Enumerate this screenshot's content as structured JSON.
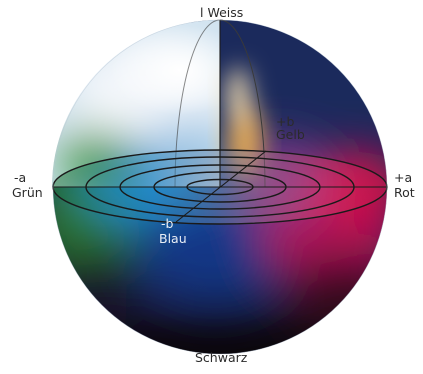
{
  "labels": {
    "top": "l Weiss",
    "plus_b": "+b",
    "gelb": "Gelb",
    "minus_a": "-a",
    "gruen": "Grün",
    "plus_a": "+a",
    "rot": "Rot",
    "minus_b": "-b",
    "blau": "Blau",
    "bottom": "Schwarz"
  },
  "colors": {
    "weiss": "#f4f7fb",
    "gelb": "#f2b24a",
    "rot": "#d6124e",
    "magenta": "#c01a78",
    "gruen": "#2f8a2c",
    "blau": "#123a8c",
    "cyan": "#2d8fcf",
    "schwarz": "#1a1416"
  }
}
